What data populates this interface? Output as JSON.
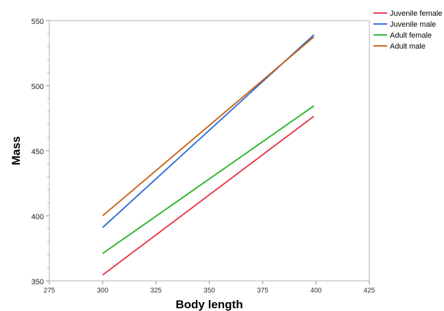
{
  "chart_data": {
    "type": "line",
    "xlabel": "Body length",
    "ylabel": "Mass",
    "xlim": [
      275,
      425
    ],
    "ylim": [
      350,
      550
    ],
    "x_ticks": [
      275,
      300,
      325,
      350,
      375,
      400,
      425
    ],
    "y_ticks": [
      350,
      400,
      450,
      500,
      550
    ],
    "grid": false,
    "legend_position": "top-right, outside plot",
    "series": [
      {
        "name": "Juvenile female",
        "color": "#e8374f",
        "x": [
          300,
          399
        ],
        "y": [
          354.5,
          476.5
        ]
      },
      {
        "name": "Juvenile male",
        "color": "#2f6fd6",
        "x": [
          300,
          399
        ],
        "y": [
          391,
          539
        ]
      },
      {
        "name": "Adult female",
        "color": "#2fb52f",
        "x": [
          300,
          399
        ],
        "y": [
          371,
          484.5
        ]
      },
      {
        "name": "Adult male",
        "color": "#c8641a",
        "x": [
          300,
          399
        ],
        "y": [
          400,
          537.5
        ]
      }
    ]
  }
}
